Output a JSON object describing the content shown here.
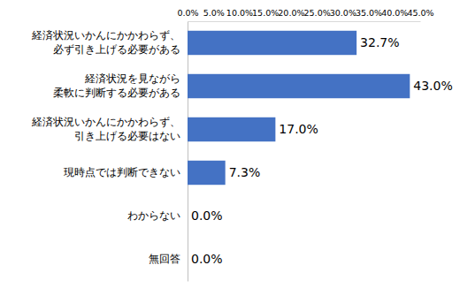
{
  "chart_data": {
    "type": "bar",
    "orientation": "horizontal",
    "categories": [
      "経済状況いかんにかかわらず、\n必ず引き上げる必要がある",
      "経済状況を見ながら\n柔軟に判断する必要がある",
      "経済状況いかんにかかわらず、\n引き上げる必要はない",
      "現時点では判断できない",
      "わからない",
      "無回答"
    ],
    "values": [
      32.7,
      43.0,
      17.0,
      7.3,
      0.0,
      0.0
    ],
    "value_labels": [
      "32.7%",
      "43.0%",
      "17.0%",
      "7.3%",
      "0.0%",
      "0.0%"
    ],
    "color": "#4472c4",
    "xlim": [
      0,
      45
    ],
    "xticks": [
      {
        "value": 0,
        "label": "0.0%"
      },
      {
        "value": 5,
        "label": "5.0%"
      },
      {
        "value": 10,
        "label": "10.0%"
      },
      {
        "value": 15,
        "label": "15.0%"
      },
      {
        "value": 20,
        "label": "20.0%"
      },
      {
        "value": 25,
        "label": "25.0%"
      },
      {
        "value": 30,
        "label": "30.0%"
      },
      {
        "value": 35,
        "label": "35.0%"
      },
      {
        "value": 40,
        "label": "40.0%"
      },
      {
        "value": 45,
        "label": "45.0%"
      }
    ],
    "grid": false,
    "data_labels": true
  }
}
